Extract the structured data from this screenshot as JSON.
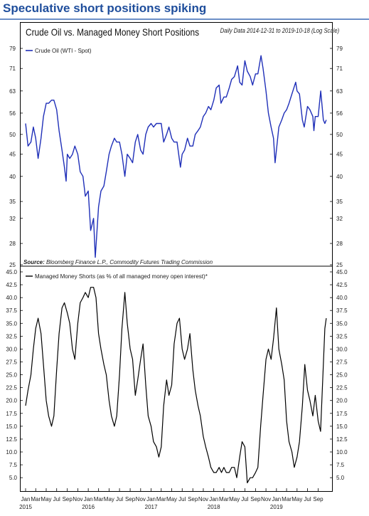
{
  "headline": "Speculative short positions spiking",
  "chart_title": "Crude Oil vs. Managed Money Short Positions",
  "date_range": "Daily Data 2014-12-31 to 2019-10-18 (Log Scale)",
  "source_label": "Source:",
  "source_text": "Bloomberg Finance L.P., Commodity Futures Trading Commission",
  "colors": {
    "oil": "#1f2fb8",
    "shorts": "#000000",
    "headline": "#1f4e9c"
  },
  "chart_data": [
    {
      "type": "line",
      "y_scale": "log",
      "ylim": [
        25,
        79
      ],
      "yticks": [
        "79",
        "71",
        "63",
        "56",
        "50",
        "45",
        "40",
        "35",
        "32",
        "28",
        "25"
      ],
      "series": [
        {
          "name": "Crude Oil (WTI - Spot)",
          "points": [
            [
              "2015-01-01",
              53
            ],
            [
              "2015-01-15",
              47
            ],
            [
              "2015-02-01",
              48
            ],
            [
              "2015-02-15",
              52
            ],
            [
              "2015-03-01",
              49
            ],
            [
              "2015-03-15",
              44
            ],
            [
              "2015-04-01",
              49
            ],
            [
              "2015-04-15",
              55
            ],
            [
              "2015-05-01",
              59
            ],
            [
              "2015-05-15",
              59
            ],
            [
              "2015-06-01",
              60
            ],
            [
              "2015-06-15",
              60
            ],
            [
              "2015-07-01",
              57
            ],
            [
              "2015-07-15",
              51
            ],
            [
              "2015-08-01",
              46
            ],
            [
              "2015-08-15",
              42
            ],
            [
              "2015-08-25",
              39
            ],
            [
              "2015-09-01",
              45
            ],
            [
              "2015-09-15",
              44
            ],
            [
              "2015-10-01",
              45
            ],
            [
              "2015-10-15",
              47
            ],
            [
              "2015-11-01",
              45
            ],
            [
              "2015-11-15",
              41
            ],
            [
              "2015-12-01",
              40
            ],
            [
              "2015-12-15",
              36
            ],
            [
              "2016-01-01",
              37
            ],
            [
              "2016-01-15",
              30
            ],
            [
              "2016-02-01",
              32
            ],
            [
              "2016-02-11",
              26
            ],
            [
              "2016-03-01",
              34
            ],
            [
              "2016-03-15",
              37
            ],
            [
              "2016-04-01",
              38
            ],
            [
              "2016-04-15",
              41
            ],
            [
              "2016-05-01",
              45
            ],
            [
              "2016-05-15",
              47
            ],
            [
              "2016-06-01",
              49
            ],
            [
              "2016-06-15",
              48
            ],
            [
              "2016-07-01",
              48
            ],
            [
              "2016-07-15",
              45
            ],
            [
              "2016-08-01",
              40
            ],
            [
              "2016-08-15",
              45
            ],
            [
              "2016-09-01",
              44
            ],
            [
              "2016-09-15",
              43
            ],
            [
              "2016-10-01",
              48
            ],
            [
              "2016-10-15",
              50
            ],
            [
              "2016-11-01",
              46
            ],
            [
              "2016-11-15",
              45
            ],
            [
              "2016-12-01",
              50
            ],
            [
              "2016-12-15",
              52
            ],
            [
              "2017-01-01",
              53
            ],
            [
              "2017-01-15",
              52
            ],
            [
              "2017-02-01",
              53
            ],
            [
              "2017-02-15",
              53
            ],
            [
              "2017-03-01",
              53
            ],
            [
              "2017-03-15",
              48
            ],
            [
              "2017-04-01",
              50
            ],
            [
              "2017-04-15",
              52
            ],
            [
              "2017-05-01",
              49
            ],
            [
              "2017-05-15",
              48
            ],
            [
              "2017-06-01",
              48
            ],
            [
              "2017-06-21",
              42
            ],
            [
              "2017-07-01",
              45
            ],
            [
              "2017-07-15",
              46
            ],
            [
              "2017-08-01",
              49
            ],
            [
              "2017-08-15",
              47
            ],
            [
              "2017-09-01",
              47
            ],
            [
              "2017-09-15",
              50
            ],
            [
              "2017-10-01",
              51
            ],
            [
              "2017-10-15",
              52
            ],
            [
              "2017-11-01",
              55
            ],
            [
              "2017-11-15",
              56
            ],
            [
              "2017-12-01",
              58
            ],
            [
              "2017-12-15",
              57
            ],
            [
              "2018-01-01",
              60
            ],
            [
              "2018-01-15",
              64
            ],
            [
              "2018-02-01",
              65
            ],
            [
              "2018-02-12",
              59
            ],
            [
              "2018-03-01",
              61
            ],
            [
              "2018-03-15",
              61
            ],
            [
              "2018-04-01",
              64
            ],
            [
              "2018-04-15",
              67
            ],
            [
              "2018-05-01",
              68
            ],
            [
              "2018-05-20",
              72
            ],
            [
              "2018-06-01",
              66
            ],
            [
              "2018-06-15",
              65
            ],
            [
              "2018-07-01",
              74
            ],
            [
              "2018-07-15",
              70
            ],
            [
              "2018-08-01",
              68
            ],
            [
              "2018-08-15",
              65
            ],
            [
              "2018-09-01",
              69
            ],
            [
              "2018-09-15",
              69
            ],
            [
              "2018-10-03",
              76
            ],
            [
              "2018-10-15",
              71
            ],
            [
              "2018-11-01",
              63
            ],
            [
              "2018-11-15",
              56
            ],
            [
              "2018-12-01",
              52
            ],
            [
              "2018-12-15",
              49
            ],
            [
              "2018-12-24",
              43
            ],
            [
              "2019-01-01",
              46
            ],
            [
              "2019-01-15",
              52
            ],
            [
              "2019-02-01",
              54
            ],
            [
              "2019-02-15",
              56
            ],
            [
              "2019-03-01",
              57
            ],
            [
              "2019-03-15",
              59
            ],
            [
              "2019-04-01",
              62
            ],
            [
              "2019-04-23",
              66
            ],
            [
              "2019-05-01",
              63
            ],
            [
              "2019-05-15",
              62
            ],
            [
              "2019-06-01",
              54
            ],
            [
              "2019-06-12",
              52
            ],
            [
              "2019-07-01",
              58
            ],
            [
              "2019-07-15",
              57
            ],
            [
              "2019-08-01",
              55
            ],
            [
              "2019-08-07",
              51
            ],
            [
              "2019-08-15",
              55
            ],
            [
              "2019-09-01",
              55
            ],
            [
              "2019-09-16",
              63
            ],
            [
              "2019-10-01",
              54
            ],
            [
              "2019-10-10",
              53
            ],
            [
              "2019-10-18",
              54
            ]
          ]
        }
      ]
    },
    {
      "type": "line",
      "ylim": [
        3.5,
        45.0
      ],
      "yticks": [
        "45.0",
        "42.5",
        "40.0",
        "37.5",
        "35.0",
        "32.5",
        "30.0",
        "27.5",
        "25.0",
        "22.5",
        "20.0",
        "17.5",
        "15.0",
        "12.5",
        "10.0",
        "7.5",
        "5.0"
      ],
      "xlabels": [
        "Jan",
        "Mar",
        "May",
        "Jul",
        "Sep",
        "Nov",
        "Jan",
        "Mar",
        "May",
        "Jul",
        "Sep",
        "Nov",
        "Jan",
        "Mar",
        "May",
        "Jul",
        "Sep",
        "Nov",
        "Jan",
        "Mar",
        "May",
        "Jul",
        "Sep",
        "Nov",
        "Jan",
        "Mar",
        "May",
        "Jul",
        "Sep"
      ],
      "year_labels": [
        "2015",
        "2016",
        "2017",
        "2018",
        "2019"
      ],
      "series": [
        {
          "name": "Managed Money Shorts (as % of all managed money open interest)*",
          "points": [
            [
              "2015-01-01",
              19
            ],
            [
              "2015-01-15",
              22
            ],
            [
              "2015-02-01",
              25
            ],
            [
              "2015-02-15",
              30
            ],
            [
              "2015-03-01",
              34
            ],
            [
              "2015-03-15",
              36
            ],
            [
              "2015-04-01",
              33
            ],
            [
              "2015-04-15",
              27
            ],
            [
              "2015-05-01",
              20
            ],
            [
              "2015-05-15",
              17
            ],
            [
              "2015-06-01",
              15
            ],
            [
              "2015-06-15",
              17
            ],
            [
              "2015-07-01",
              26
            ],
            [
              "2015-07-15",
              33
            ],
            [
              "2015-08-01",
              38
            ],
            [
              "2015-08-15",
              39
            ],
            [
              "2015-09-01",
              37
            ],
            [
              "2015-09-15",
              35
            ],
            [
              "2015-10-01",
              30
            ],
            [
              "2015-10-15",
              28
            ],
            [
              "2015-11-01",
              35
            ],
            [
              "2015-11-15",
              39
            ],
            [
              "2015-12-01",
              40
            ],
            [
              "2015-12-15",
              41
            ],
            [
              "2016-01-01",
              40
            ],
            [
              "2016-01-15",
              42
            ],
            [
              "2016-02-01",
              42
            ],
            [
              "2016-02-15",
              40
            ],
            [
              "2016-03-01",
              33
            ],
            [
              "2016-03-15",
              30
            ],
            [
              "2016-04-01",
              27
            ],
            [
              "2016-04-15",
              25
            ],
            [
              "2016-05-01",
              20
            ],
            [
              "2016-05-15",
              17
            ],
            [
              "2016-06-01",
              15
            ],
            [
              "2016-06-15",
              17
            ],
            [
              "2016-07-01",
              25
            ],
            [
              "2016-07-15",
              34
            ],
            [
              "2016-08-01",
              41
            ],
            [
              "2016-08-15",
              35
            ],
            [
              "2016-09-01",
              30
            ],
            [
              "2016-09-15",
              28
            ],
            [
              "2016-10-01",
              21
            ],
            [
              "2016-10-15",
              24
            ],
            [
              "2016-11-01",
              28
            ],
            [
              "2016-11-15",
              31
            ],
            [
              "2016-12-01",
              23
            ],
            [
              "2016-12-15",
              17
            ],
            [
              "2017-01-01",
              15
            ],
            [
              "2017-01-15",
              12
            ],
            [
              "2017-02-01",
              11
            ],
            [
              "2017-02-15",
              9
            ],
            [
              "2017-03-01",
              11
            ],
            [
              "2017-03-15",
              19
            ],
            [
              "2017-04-01",
              24
            ],
            [
              "2017-04-15",
              21
            ],
            [
              "2017-05-01",
              23
            ],
            [
              "2017-05-15",
              31
            ],
            [
              "2017-06-01",
              35
            ],
            [
              "2017-06-15",
              36
            ],
            [
              "2017-07-01",
              30
            ],
            [
              "2017-07-15",
              28
            ],
            [
              "2017-08-01",
              30
            ],
            [
              "2017-08-15",
              33
            ],
            [
              "2017-09-01",
              26
            ],
            [
              "2017-09-15",
              22
            ],
            [
              "2017-10-01",
              19
            ],
            [
              "2017-10-15",
              17
            ],
            [
              "2017-11-01",
              13
            ],
            [
              "2017-11-15",
              11
            ],
            [
              "2017-12-01",
              9
            ],
            [
              "2017-12-15",
              7
            ],
            [
              "2018-01-01",
              6
            ],
            [
              "2018-01-15",
              6
            ],
            [
              "2018-02-01",
              7
            ],
            [
              "2018-02-15",
              6
            ],
            [
              "2018-03-01",
              7
            ],
            [
              "2018-03-15",
              6
            ],
            [
              "2018-04-01",
              6
            ],
            [
              "2018-04-15",
              7
            ],
            [
              "2018-05-01",
              7
            ],
            [
              "2018-05-15",
              5
            ],
            [
              "2018-06-01",
              9
            ],
            [
              "2018-06-15",
              12
            ],
            [
              "2018-07-01",
              11
            ],
            [
              "2018-07-15",
              4
            ],
            [
              "2018-08-01",
              5
            ],
            [
              "2018-08-15",
              5
            ],
            [
              "2018-09-01",
              6
            ],
            [
              "2018-09-15",
              7
            ],
            [
              "2018-10-01",
              15
            ],
            [
              "2018-10-15",
              21
            ],
            [
              "2018-11-01",
              28
            ],
            [
              "2018-11-15",
              30
            ],
            [
              "2018-12-01",
              28
            ],
            [
              "2018-12-15",
              32
            ],
            [
              "2019-01-01",
              38
            ],
            [
              "2019-01-15",
              30
            ],
            [
              "2019-02-01",
              27
            ],
            [
              "2019-02-15",
              24
            ],
            [
              "2019-03-01",
              16
            ],
            [
              "2019-03-15",
              12
            ],
            [
              "2019-04-01",
              10
            ],
            [
              "2019-04-15",
              7
            ],
            [
              "2019-05-01",
              9
            ],
            [
              "2019-05-15",
              12
            ],
            [
              "2019-06-01",
              19
            ],
            [
              "2019-06-15",
              27
            ],
            [
              "2019-07-01",
              22
            ],
            [
              "2019-07-15",
              20
            ],
            [
              "2019-08-01",
              17
            ],
            [
              "2019-08-15",
              21
            ],
            [
              "2019-09-01",
              16
            ],
            [
              "2019-09-15",
              14
            ],
            [
              "2019-10-01",
              27
            ],
            [
              "2019-10-10",
              34
            ],
            [
              "2019-10-18",
              36
            ]
          ]
        }
      ]
    }
  ]
}
